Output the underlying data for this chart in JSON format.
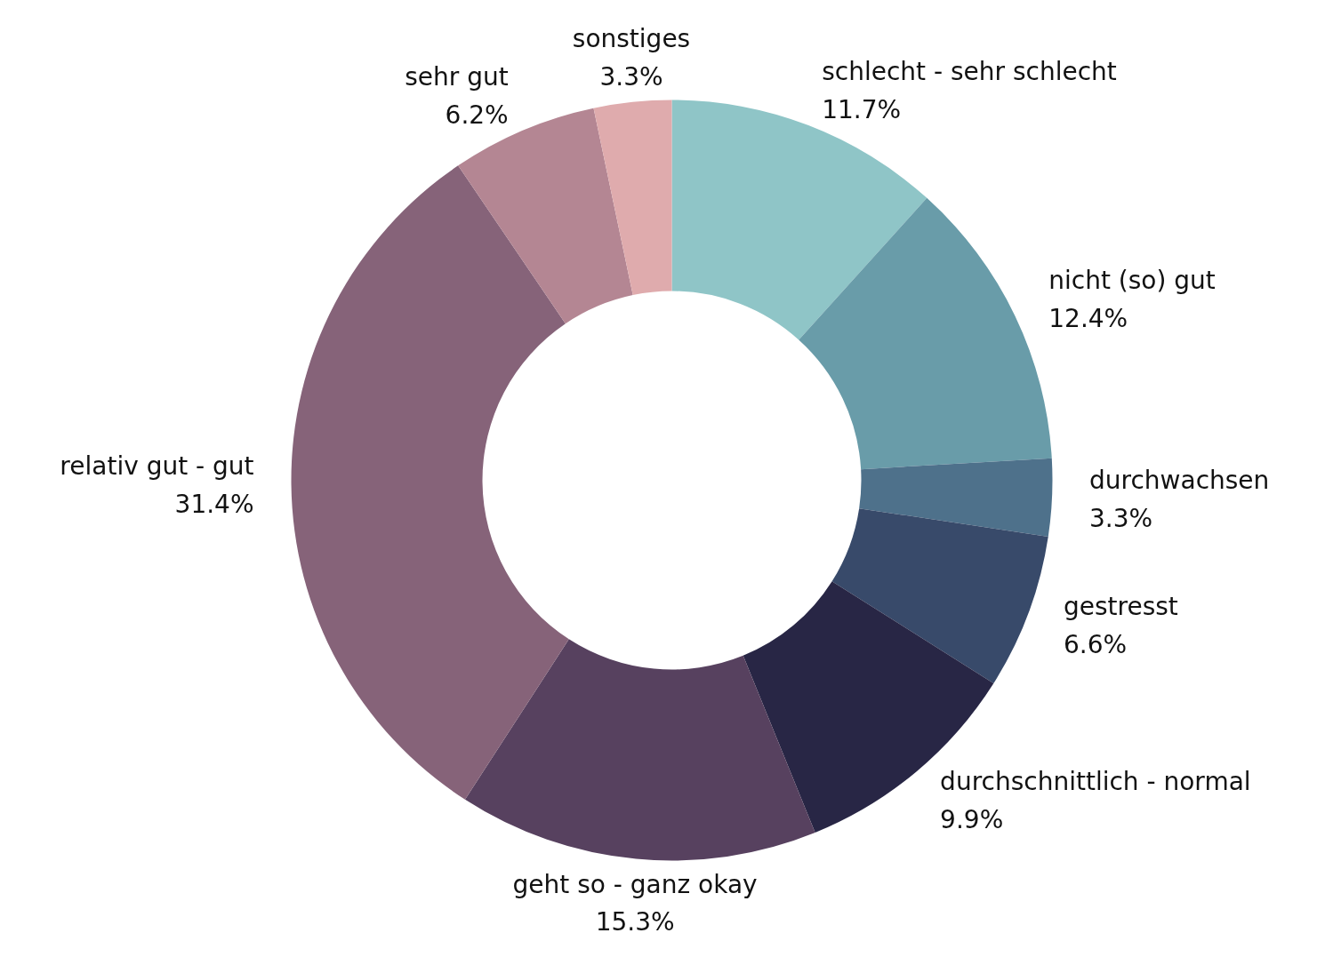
{
  "chart_data": {
    "type": "donut",
    "categories": [
      "schlecht - sehr schlecht",
      "nicht (so) gut",
      "durchwachsen",
      "gestresst",
      "durchschnittlich - normal",
      "geht so - ganz okay",
      "relativ gut - gut",
      "sehr gut",
      "sonstiges"
    ],
    "values": [
      11.7,
      12.4,
      3.3,
      6.6,
      9.9,
      15.3,
      31.4,
      6.2,
      3.3
    ],
    "value_labels": [
      "11.7%",
      "12.4%",
      "3.3%",
      "6.6%",
      "9.9%",
      "15.3%",
      "31.4%",
      "6.2%",
      "3.3%"
    ],
    "colors": [
      "#8fc5c7",
      "#699ca9",
      "#4e718b",
      "#384a6a",
      "#282645",
      "#57415f",
      "#866379",
      "#b48693",
      "#dfabad"
    ]
  }
}
